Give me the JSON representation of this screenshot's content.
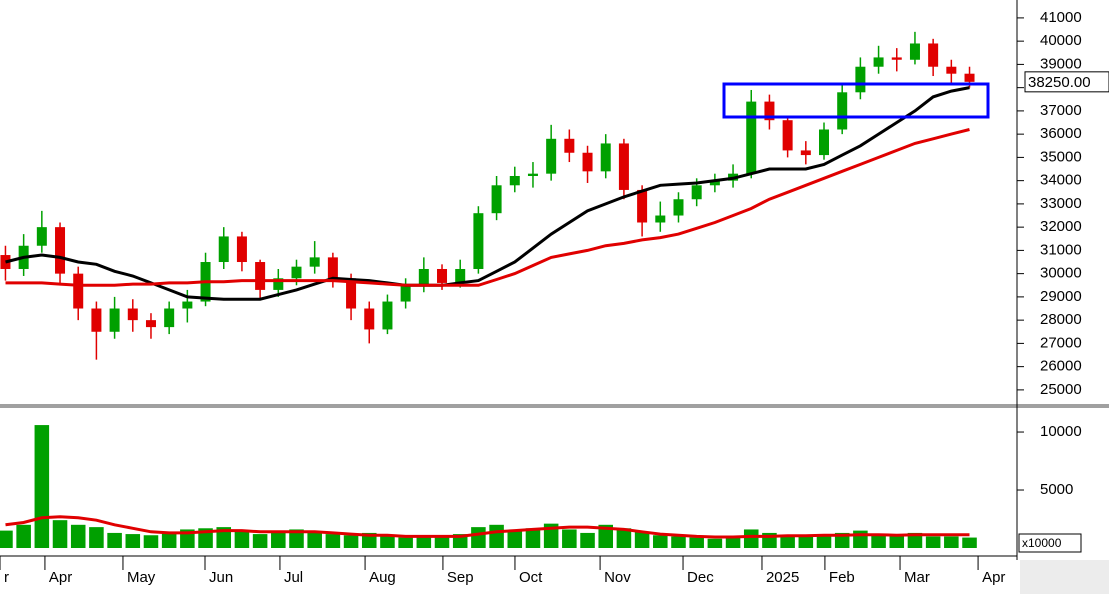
{
  "chart_data": [
    {
      "type": "candlestick",
      "categories": [
        null,
        null,
        null,
        null,
        null,
        null,
        null,
        null,
        null,
        null,
        null,
        null,
        null,
        null,
        null,
        null,
        null,
        null,
        null,
        null,
        null,
        null,
        null,
        null,
        null,
        null,
        null,
        null,
        null,
        null,
        null,
        null,
        null,
        null,
        null,
        null,
        null,
        null,
        null,
        null,
        null,
        null,
        null,
        null,
        null,
        null,
        null,
        null,
        null,
        null,
        null,
        null,
        null,
        null
      ],
      "open": [
        30800,
        30200,
        31200,
        32000,
        30000,
        28500,
        27500,
        28500,
        28000,
        27700,
        28500,
        28800,
        30500,
        31600,
        30500,
        29300,
        29800,
        30300,
        30700,
        29800,
        28500,
        27600,
        28800,
        29500,
        30200,
        29600,
        30200,
        32600,
        33800,
        34200,
        34300,
        35800,
        35200,
        34400,
        35600,
        33600,
        32200,
        32500,
        33200,
        33800,
        34000,
        34300,
        37400,
        36600,
        35300,
        35100,
        36200,
        37800,
        38900,
        39300,
        39200,
        39900,
        38900,
        38600
      ],
      "high": [
        31200,
        31700,
        32700,
        32200,
        30300,
        28800,
        29000,
        28900,
        28300,
        28800,
        29300,
        30900,
        32000,
        31800,
        30600,
        30200,
        30600,
        31400,
        30900,
        30000,
        28800,
        29100,
        29800,
        30700,
        30400,
        30600,
        32900,
        34200,
        34600,
        34800,
        36400,
        36200,
        35500,
        36000,
        35800,
        33800,
        33100,
        33500,
        34100,
        34300,
        34700,
        37900,
        37700,
        36800,
        35700,
        36500,
        38200,
        39300,
        39800,
        39700,
        40400,
        40100,
        39200,
        38900
      ],
      "low": [
        29700,
        29900,
        30900,
        29600,
        28000,
        26300,
        27200,
        27500,
        27200,
        27400,
        27900,
        28600,
        30200,
        30100,
        28900,
        29000,
        29500,
        30000,
        29400,
        28000,
        27000,
        27400,
        28500,
        29200,
        29300,
        29400,
        30000,
        32300,
        33500,
        33700,
        34000,
        34800,
        33900,
        34100,
        33200,
        31600,
        31800,
        32200,
        32900,
        33500,
        33700,
        34100,
        36200,
        35000,
        34700,
        34900,
        36000,
        37500,
        38600,
        38700,
        39000,
        38500,
        38200,
        38000
      ],
      "close": [
        30200,
        31200,
        32000,
        30000,
        28500,
        27500,
        28500,
        28000,
        27700,
        28500,
        28800,
        30500,
        31600,
        30500,
        29300,
        29800,
        30300,
        30700,
        29800,
        28500,
        27600,
        28800,
        29500,
        30200,
        29600,
        30200,
        32600,
        33800,
        34200,
        34300,
        35800,
        35200,
        34400,
        35600,
        33600,
        32200,
        32500,
        33200,
        33800,
        34000,
        34300,
        37400,
        36600,
        35300,
        35100,
        36200,
        37800,
        38900,
        39300,
        39200,
        39900,
        38900,
        38600,
        38250
      ],
      "up_color": "#00a000",
      "down_color": "#e00000",
      "series": [
        {
          "color": "#000000",
          "values": [
            30500,
            30700,
            30800,
            30700,
            30500,
            30400,
            30100,
            29900,
            29600,
            29300,
            29000,
            28950,
            28900,
            28900,
            28900,
            29100,
            29300,
            29550,
            29800,
            29750,
            29700,
            29600,
            29500,
            29500,
            29500,
            29600,
            29700,
            30100,
            30500,
            31100,
            31700,
            32200,
            32700,
            33000,
            33300,
            33550,
            33800,
            33850,
            33900,
            34000,
            34100,
            34300,
            34500,
            34500,
            34500,
            34700,
            35100,
            35500,
            36000,
            36500,
            37000,
            37600,
            37850,
            38000
          ]
        },
        {
          "color": "#e00000",
          "values": [
            29600,
            29600,
            29600,
            29550,
            29500,
            29500,
            29500,
            29550,
            29550,
            29600,
            29600,
            29650,
            29650,
            29700,
            29700,
            29700,
            29700,
            29700,
            29700,
            29650,
            29600,
            29550,
            29500,
            29500,
            29500,
            29500,
            29500,
            29750,
            30000,
            30350,
            30700,
            30850,
            31000,
            31200,
            31300,
            31450,
            31550,
            31700,
            31950,
            32200,
            32500,
            32800,
            33200,
            33500,
            33800,
            34100,
            34400,
            34700,
            35000,
            35300,
            35600,
            35800,
            36000,
            36200
          ]
        }
      ],
      "last_price": {
        "value": 38250,
        "label": "38250.00"
      },
      "xlim": [
        -0.3,
        55.5
      ],
      "ylim": [
        24350,
        41770
      ],
      "yticks": [
        25000,
        26000,
        27000,
        28000,
        29000,
        30000,
        31000,
        32000,
        33000,
        34000,
        35000,
        36000,
        37000,
        38000,
        39000,
        40000,
        41000
      ]
    },
    {
      "type": "bar",
      "categories": [
        null,
        null,
        null,
        null,
        null,
        null,
        null,
        null,
        null,
        null,
        null,
        null,
        null,
        null,
        null,
        null,
        null,
        null,
        null,
        null,
        null,
        null,
        null,
        null,
        null,
        null,
        null,
        null,
        null,
        null,
        null,
        null,
        null,
        null,
        null,
        null,
        null,
        null,
        null,
        null,
        null,
        null,
        null,
        null,
        null,
        null,
        null,
        null,
        null,
        null,
        null,
        null,
        null,
        null
      ],
      "values": [
        1500,
        2000,
        10600,
        2400,
        2000,
        1800,
        1300,
        1200,
        1100,
        1300,
        1600,
        1700,
        1800,
        1400,
        1200,
        1500,
        1600,
        1400,
        1200,
        1100,
        1300,
        1000,
        900,
        1000,
        1100,
        1200,
        1800,
        2000,
        1500,
        1700,
        2100,
        1600,
        1300,
        2000,
        1700,
        1400,
        1100,
        1000,
        900,
        800,
        900,
        1600,
        1300,
        1000,
        1100,
        1200,
        1300,
        1500,
        1100,
        1200,
        1300,
        1000,
        1000,
        900
      ],
      "color": "#00a000",
      "series": [
        {
          "color": "#e00000",
          "values": [
            2000,
            2200,
            2600,
            2700,
            2600,
            2400,
            2000,
            1700,
            1400,
            1300,
            1300,
            1400,
            1500,
            1500,
            1400,
            1400,
            1400,
            1400,
            1300,
            1200,
            1100,
            1100,
            1000,
            1000,
            1000,
            1000,
            1200,
            1400,
            1500,
            1600,
            1700,
            1800,
            1800,
            1700,
            1600,
            1400,
            1200,
            1100,
            1000,
            950,
            950,
            1000,
            1000,
            1050,
            1050,
            1100,
            1100,
            1150,
            1150,
            1100,
            1150,
            1150,
            1150,
            1150
          ]
        }
      ],
      "volume_unit": "x10000",
      "xlim": [
        -0.3,
        55.5
      ],
      "xticks": [
        {
          "value": -0.3,
          "label": "r"
        },
        {
          "value": 2.17,
          "label": "Apr"
        },
        {
          "value": 6.46,
          "label": "May"
        },
        {
          "value": 10.97,
          "label": "Jun"
        },
        {
          "value": 15.09,
          "label": "Jul"
        },
        {
          "value": 19.77,
          "label": "Aug"
        },
        {
          "value": 24.05,
          "label": "Sep"
        },
        {
          "value": 28.01,
          "label": "Oct"
        },
        {
          "value": 32.69,
          "label": "Nov"
        },
        {
          "value": 37.25,
          "label": "Dec"
        },
        {
          "value": 41.59,
          "label": "2025"
        },
        {
          "value": 45.05,
          "label": "Feb"
        },
        {
          "value": 49.18,
          "label": "Mar"
        },
        {
          "value": 53.47,
          "label": "Apr"
        }
      ],
      "ylim": [
        0,
        11900
      ],
      "yticks": [
        5000,
        10000
      ]
    }
  ]
}
